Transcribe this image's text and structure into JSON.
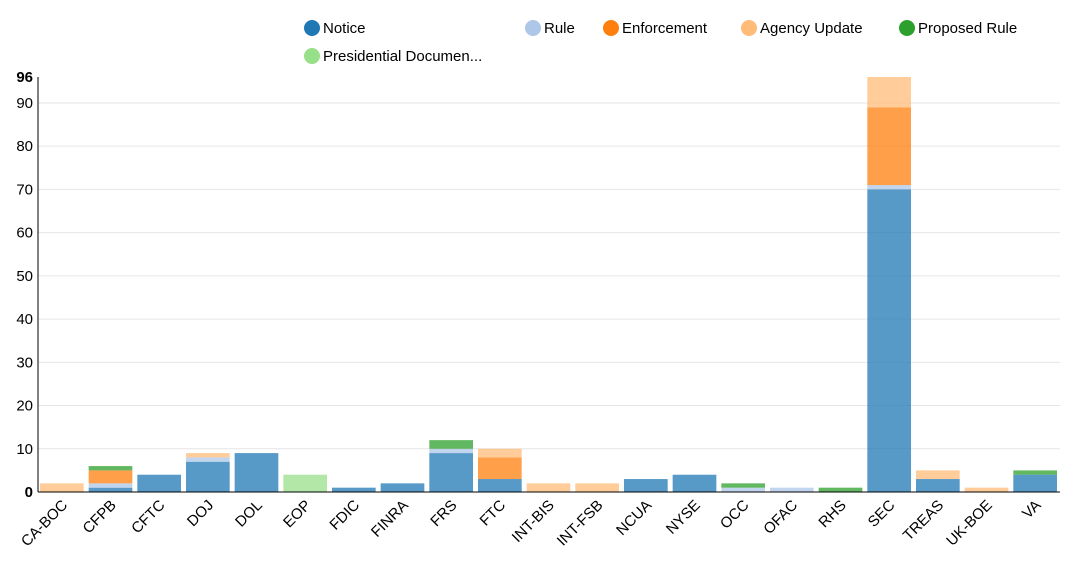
{
  "chart_data": {
    "type": "bar",
    "stacked": true,
    "title": "",
    "xlabel": "",
    "ylabel": "",
    "ylim": [
      0,
      96
    ],
    "y_ticks": [
      0,
      10,
      20,
      30,
      40,
      50,
      60,
      70,
      80,
      90
    ],
    "y_max_label": "96",
    "grid": true,
    "legend_position": "top",
    "categories": [
      "CA-BOC",
      "CFPB",
      "CFTC",
      "DOJ",
      "DOL",
      "EOP",
      "FDIC",
      "FINRA",
      "FRS",
      "FTC",
      "INT-BIS",
      "INT-FSB",
      "NCUA",
      "NYSE",
      "OCC",
      "OFAC",
      "RHS",
      "SEC",
      "TREAS",
      "UK-BOE",
      "VA"
    ],
    "series": [
      {
        "name": "Notice",
        "color": "#1f77b4",
        "values": [
          0,
          1,
          4,
          7,
          9,
          0,
          1,
          2,
          9,
          3,
          0,
          0,
          3,
          4,
          0,
          0,
          0,
          70,
          3,
          0,
          4
        ]
      },
      {
        "name": "Rule",
        "color": "#aec7e8",
        "values": [
          0,
          1,
          0,
          1,
          0,
          0,
          0,
          0,
          1,
          0,
          0,
          0,
          0,
          0,
          1,
          1,
          0,
          1,
          0,
          0,
          0
        ]
      },
      {
        "name": "Enforcement",
        "color": "#ff7f0e",
        "values": [
          0,
          3,
          0,
          0,
          0,
          0,
          0,
          0,
          0,
          5,
          0,
          0,
          0,
          0,
          0,
          0,
          0,
          18,
          0,
          0,
          0
        ]
      },
      {
        "name": "Agency Update",
        "color": "#ffbb78",
        "values": [
          2,
          0,
          0,
          1,
          0,
          0,
          0,
          0,
          0,
          2,
          2,
          2,
          0,
          0,
          0,
          0,
          0,
          7,
          2,
          1,
          0
        ]
      },
      {
        "name": "Proposed Rule",
        "color": "#2ca02c",
        "values": [
          0,
          1,
          0,
          0,
          0,
          0,
          0,
          0,
          2,
          0,
          0,
          0,
          0,
          0,
          1,
          0,
          1,
          0,
          0,
          0,
          1
        ]
      },
      {
        "name": "Presidential Documen...",
        "color": "#98df8a",
        "values": [
          0,
          0,
          0,
          0,
          0,
          4,
          0,
          0,
          0,
          0,
          0,
          0,
          0,
          0,
          0,
          0,
          0,
          0,
          0,
          0,
          0
        ]
      }
    ]
  }
}
